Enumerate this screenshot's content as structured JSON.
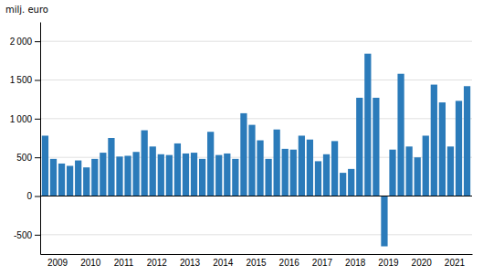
{
  "chart_data": {
    "type": "bar",
    "ylabel": "milj. euro",
    "categories": [
      "2009",
      null,
      null,
      null,
      "2010",
      null,
      null,
      null,
      "2011",
      null,
      null,
      null,
      "2012",
      null,
      null,
      null,
      "2013",
      null,
      null,
      null,
      "2014",
      null,
      null,
      null,
      "2015",
      null,
      null,
      null,
      "2016",
      null,
      null,
      null,
      "2017",
      null,
      null,
      null,
      "2018",
      null,
      null,
      null,
      "2019",
      null,
      null,
      null,
      "2020",
      null,
      null,
      null,
      "2021",
      null,
      null,
      null
    ],
    "values": [
      780,
      480,
      420,
      390,
      460,
      370,
      480,
      560,
      750,
      510,
      520,
      570,
      850,
      640,
      540,
      530,
      680,
      550,
      560,
      480,
      830,
      530,
      550,
      480,
      1070,
      920,
      720,
      480,
      860,
      610,
      600,
      780,
      730,
      450,
      540,
      710,
      300,
      350,
      1270,
      1840,
      1270,
      -650,
      600,
      1580,
      640,
      500,
      780,
      1440,
      1210,
      640,
      1230,
      1420
    ],
    "color": "#2b7bba",
    "ylim": [
      -750,
      2250
    ],
    "yticks": [
      -500,
      0,
      500,
      {
        "value": 1000,
        "label": "1 000"
      },
      {
        "value": 1500,
        "label": "1 500"
      },
      {
        "value": 2000,
        "label": "2 000"
      }
    ],
    "grid": true
  }
}
